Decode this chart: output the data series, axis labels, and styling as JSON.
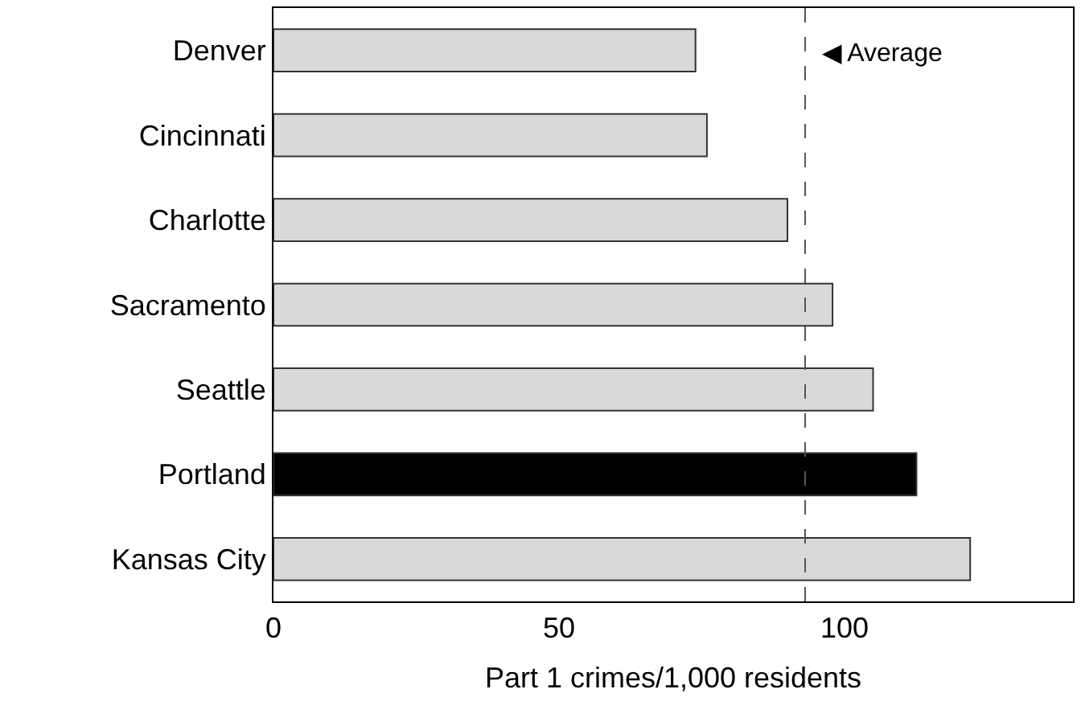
{
  "chart_data": {
    "type": "bar",
    "orientation": "horizontal",
    "xlabel": "Part 1 crimes/1,000 residents",
    "categories": [
      "Denver",
      "Cincinnati",
      "Charlotte",
      "Sacramento",
      "Seattle",
      "Portland",
      "Kansas City"
    ],
    "values": [
      73.9,
      75.9,
      90,
      97.9,
      105,
      112.6,
      122
    ],
    "colors": [
      "#d9d9d9",
      "#d9d9d9",
      "#d9d9d9",
      "#d9d9d9",
      "#d9d9d9",
      "#000000",
      "#d9d9d9"
    ],
    "xlim": [
      0,
      140
    ],
    "xticks": [
      0,
      50,
      100
    ],
    "legend": false,
    "ref_lines": [
      {
        "axis": "x",
        "value": 93.1,
        "color": "#555555",
        "line_style": "dashed"
      }
    ],
    "annotations": [
      {
        "text": "◀ Average",
        "x": 93.1
      }
    ]
  }
}
